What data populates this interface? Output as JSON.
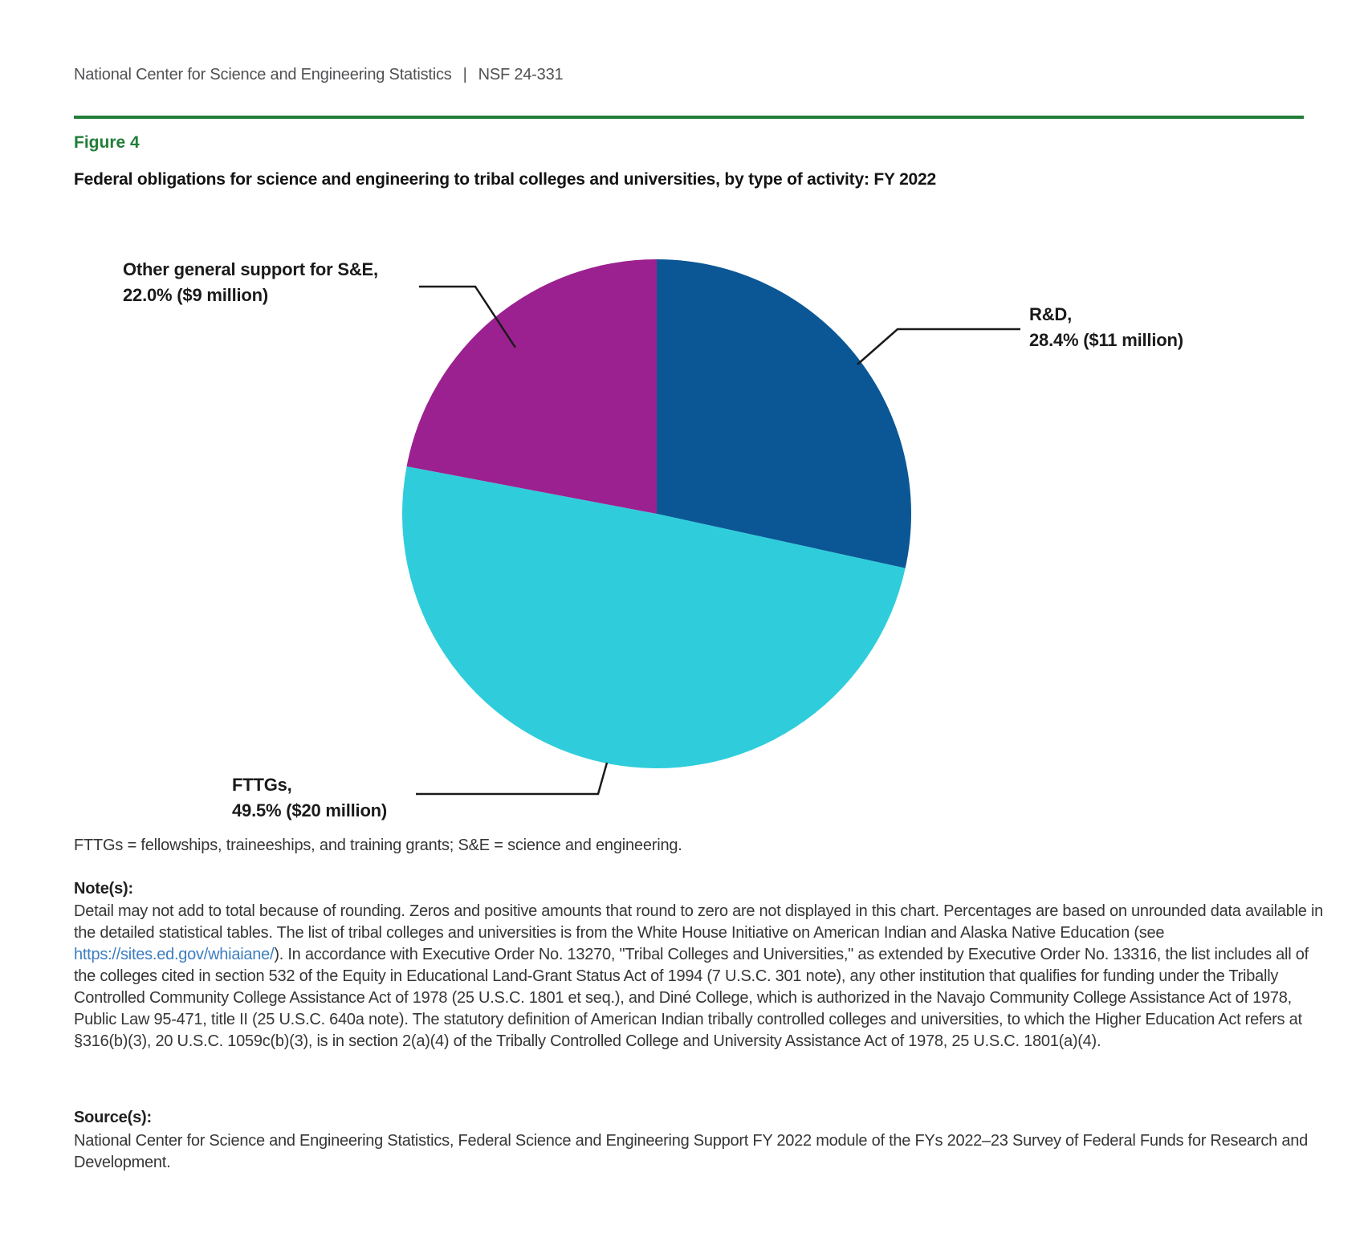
{
  "header": {
    "org": "National Center for Science and Engineering Statistics",
    "separator": "|",
    "report_number": "NSF 24-331"
  },
  "figure": {
    "label": "Figure 4",
    "title": "Federal obligations for science and engineering to tribal colleges and universities, by type of activity: FY 2022"
  },
  "chart_data": {
    "type": "pie",
    "title": "Federal obligations for science and engineering to tribal colleges and universities, by type of activity: FY 2022",
    "start_angle_deg": 0,
    "direction": "clockwise",
    "unit": "percent of federal obligations (FY 2022)",
    "slices": [
      {
        "key": "rd",
        "label": "R&D",
        "pct": 28.4,
        "amount": "$11 million",
        "color": "#0B5796",
        "callout_line1": "R&D,",
        "callout_line2": "28.4% ($11 million)"
      },
      {
        "key": "fttgs",
        "label": "FTTGs",
        "pct": 49.5,
        "amount": "$20 million",
        "color": "#2FCDDB",
        "callout_line1": "FTTGs,",
        "callout_line2": "49.5% ($20 million)"
      },
      {
        "key": "other",
        "label": "Other general support for S&E",
        "pct": 22.0,
        "amount": "$9 million",
        "color": "#9C2190",
        "callout_line1": "Other general support for S&E,",
        "callout_line2": "22.0% ($9 million)"
      }
    ],
    "legend_position": "callout-labels-with-leader-lines"
  },
  "abbreviation_note": "FTTGs = fellowships, traineeships, and training grants; S&E = science and engineering.",
  "notes": {
    "label": "Note(s):",
    "before_link": "Detail may not add to total because of rounding. Zeros and positive amounts that round to zero are not displayed in this chart. Percentages are based on unrounded data available in the detailed statistical tables. The list of tribal colleges and universities is from the White House Initiative on American Indian and Alaska Native Education (see ",
    "link_text": "https://sites.ed.gov/whiaiane/",
    "after_link": "). In accordance with Executive Order No. 13270, \"Tribal Colleges and Universities,\" as extended by Executive Order No. 13316, the list includes all of the colleges cited in section 532 of the Equity in Educational Land-Grant Status Act of 1994 (7 U.S.C. 301 note), any other institution that qualifies for funding under the Tribally Controlled Community College Assistance Act of 1978 (25 U.S.C. 1801 et seq.), and Diné College, which is authorized in the Navajo Community College Assistance Act of 1978, Public Law 95-471, title II (25 U.S.C. 640a note). The statutory definition of American Indian tribally controlled colleges and universities, to which the Higher Education Act refers at §316(b)(3), 20 U.S.C. 1059c(b)(3), is in section 2(a)(4) of the Tribally Controlled College and University Assistance Act of 1978, 25 U.S.C. 1801(a)(4)."
  },
  "sources": {
    "label": "Source(s):",
    "text": "National Center for Science and Engineering Statistics, Federal Science and Engineering Support FY 2022 module of the FYs 2022–23 Survey of Federal Funds for Research and Development."
  },
  "colors": {
    "accent_green": "#217E38",
    "header_gray": "#515154",
    "link_blue": "#3D7EC1",
    "slice_rd": "#0B5796",
    "slice_fttgs": "#2FCDDB",
    "slice_other": "#9C2190"
  }
}
